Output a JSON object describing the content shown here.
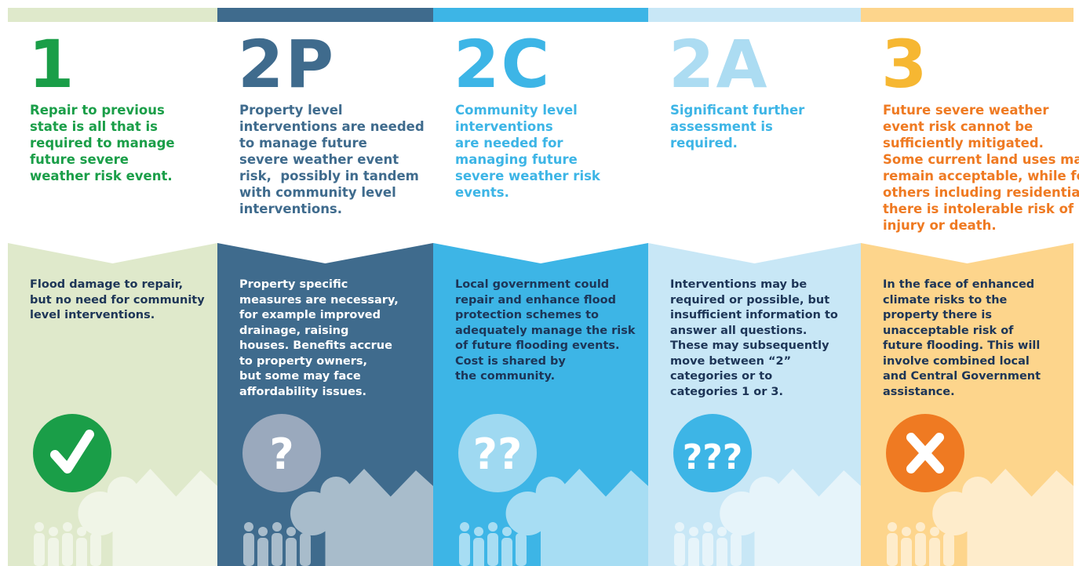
{
  "columns": [
    {
      "code": "1",
      "heading": [
        "Repair to previous",
        "state is all that is",
        "required to manage",
        "future severe",
        "weather risk event."
      ],
      "body": [
        "Flood damage to repair,",
        "but no need for community",
        "level interventions."
      ],
      "icon": "check",
      "colors": {
        "bg": "#dfe9cb",
        "code": "#1a9e48",
        "heading": "#1a9e48",
        "body": "#1d3557",
        "circle": "#1a9e48"
      }
    },
    {
      "code": "2P",
      "heading": [
        "Property level",
        "interventions are needed",
        "to manage future",
        "severe weather event",
        "risk,  possibly in tandem",
        "with community level",
        "interventions."
      ],
      "body": [
        "Property specific",
        "measures are necessary,",
        "for example improved",
        "drainage, raising",
        "houses. Benefits accrue",
        "to property owners,",
        "but some may face",
        "affordability issues."
      ],
      "icon": "?",
      "colors": {
        "bg": "#3f6b8d",
        "code": "#3f6b8d",
        "heading": "#3f6b8d",
        "body": "#ffffff",
        "circle": "#9aa9bd"
      }
    },
    {
      "code": "2C",
      "heading": [
        "Community level",
        "interventions",
        "are needed for",
        "managing future",
        "severe weather risk",
        "events."
      ],
      "body": [
        "Local government could",
        "repair and enhance flood",
        "protection schemes to",
        "adequately manage the risk",
        "of future flooding events.",
        "Cost is shared by",
        "the community."
      ],
      "icon": "??",
      "colors": {
        "bg": "#3db5e6",
        "code": "#3db5e6",
        "heading": "#3db5e6",
        "body": "#1d3557",
        "circle": "#9fd9f1"
      }
    },
    {
      "code": "2A",
      "heading": [
        "Significant further",
        "assessment is",
        "required."
      ],
      "body": [
        "Interventions may be",
        "required or possible, but",
        "insufficient information to",
        "answer all questions.",
        "These may subsequently",
        "move between “2”",
        "categories or to",
        "categories 1 or 3."
      ],
      "icon": "???",
      "colors": {
        "bg": "#c8e7f6",
        "code": "#acdcf2",
        "heading": "#3db5e6",
        "body": "#1d3557",
        "circle": "#3db5e6"
      }
    },
    {
      "code": "3",
      "heading": [
        "Future severe weather",
        "event risk cannot be",
        "sufficiently mitigated.",
        "Some current land uses may",
        "remain acceptable, while for",
        "others including residential",
        "there is intolerable risk of",
        "injury or death."
      ],
      "body": [
        "In the face of enhanced",
        "climate risks to the",
        "property there is",
        "unacceptable risk of",
        "future flooding. This will",
        "involve combined local",
        "and Central Government",
        "assistance."
      ],
      "icon": "cross",
      "colors": {
        "bg": "#fdd58c",
        "code": "#f6b732",
        "heading": "#ef7a22",
        "body": "#1d3557",
        "circle": "#ef7a22"
      }
    }
  ]
}
